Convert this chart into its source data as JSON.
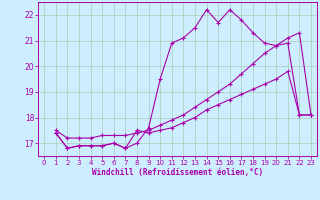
{
  "xlabel": "Windchill (Refroidissement éolien,°C)",
  "bg_color": "#cceeff",
  "grid_color": "#aaccbb",
  "line_color": "#aa00aa",
  "xlim": [
    -0.5,
    23.5
  ],
  "ylim": [
    16.5,
    22.5
  ],
  "yticks": [
    17,
    18,
    19,
    20,
    21,
    22
  ],
  "xticks": [
    0,
    1,
    2,
    3,
    4,
    5,
    6,
    7,
    8,
    9,
    10,
    11,
    12,
    13,
    14,
    15,
    16,
    17,
    18,
    19,
    20,
    21,
    22,
    23
  ],
  "series1_x": [
    1,
    2,
    3,
    4,
    5,
    6,
    7,
    8,
    9,
    10,
    11,
    12,
    13,
    14,
    15,
    16,
    17,
    18,
    19,
    20,
    21,
    22,
    23
  ],
  "series1_y": [
    17.4,
    16.8,
    16.9,
    16.9,
    16.9,
    17.0,
    16.8,
    17.0,
    17.6,
    19.5,
    20.9,
    21.1,
    21.5,
    22.2,
    21.7,
    22.2,
    21.8,
    21.3,
    20.9,
    20.8,
    20.9,
    18.1,
    18.1
  ],
  "series2_x": [
    1,
    2,
    3,
    4,
    5,
    6,
    7,
    8,
    9,
    10,
    11,
    12,
    13,
    14,
    15,
    16,
    17,
    18,
    19,
    20,
    21,
    22,
    23
  ],
  "series2_y": [
    17.4,
    16.8,
    16.9,
    16.9,
    16.9,
    17.0,
    16.8,
    17.5,
    17.4,
    17.5,
    17.6,
    17.8,
    18.0,
    18.3,
    18.5,
    18.7,
    18.9,
    19.1,
    19.3,
    19.5,
    19.8,
    18.1,
    18.1
  ],
  "series3_x": [
    1,
    2,
    3,
    4,
    5,
    6,
    7,
    8,
    9,
    10,
    11,
    12,
    13,
    14,
    15,
    16,
    17,
    18,
    19,
    20,
    21,
    22,
    23
  ],
  "series3_y": [
    17.5,
    17.2,
    17.2,
    17.2,
    17.3,
    17.3,
    17.3,
    17.4,
    17.5,
    17.7,
    17.9,
    18.1,
    18.4,
    18.7,
    19.0,
    19.3,
    19.7,
    20.1,
    20.5,
    20.8,
    21.1,
    21.3,
    18.1
  ]
}
